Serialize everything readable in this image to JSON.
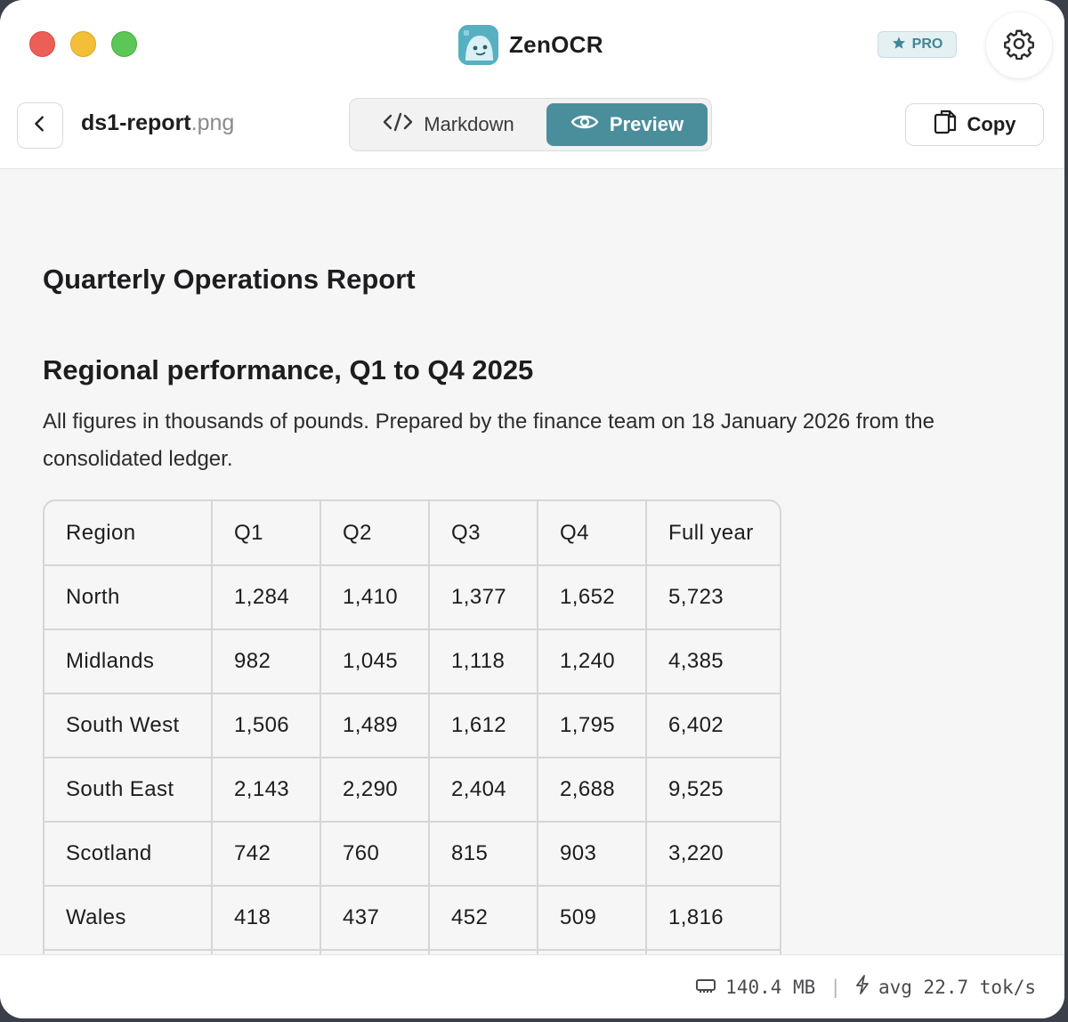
{
  "app": {
    "name": "ZenOCR",
    "badge": "PRO"
  },
  "toolbar": {
    "file_base": "ds1-report",
    "file_ext": ".png",
    "tabs": [
      {
        "label": "Markdown",
        "icon": "code-icon",
        "active": false
      },
      {
        "label": "Preview",
        "icon": "eye-icon",
        "active": true
      }
    ],
    "copy_label": "Copy"
  },
  "document": {
    "title": "Quarterly Operations Report",
    "heading": "Regional performance, Q1 to Q4 2025",
    "paragraph": "All figures in thousands of pounds. Prepared by the finance team on 18 January 2026 from the consolidated ledger.",
    "table": {
      "headers": [
        "Region",
        "Q1",
        "Q2",
        "Q3",
        "Q4",
        "Full year"
      ],
      "rows": [
        [
          "North",
          "1,284",
          "1,410",
          "1,377",
          "1,652",
          "5,723"
        ],
        [
          "Midlands",
          "982",
          "1,045",
          "1,118",
          "1,240",
          "4,385"
        ],
        [
          "South West",
          "1,506",
          "1,489",
          "1,612",
          "1,795",
          "6,402"
        ],
        [
          "South East",
          "2,143",
          "2,290",
          "2,404",
          "2,688",
          "9,525"
        ],
        [
          "Scotland",
          "742",
          "760",
          "815",
          "903",
          "3,220"
        ],
        [
          "Wales",
          "418",
          "437",
          "452",
          "509",
          "1,816"
        ],
        [
          "",
          "",
          "",
          "",
          "",
          ""
        ]
      ]
    }
  },
  "footer": {
    "memory": "140.4 MB",
    "speed": "avg 22.7 tok/s"
  },
  "colors": {
    "accent": "#4a8e9b",
    "pro_text": "#3f8797"
  }
}
